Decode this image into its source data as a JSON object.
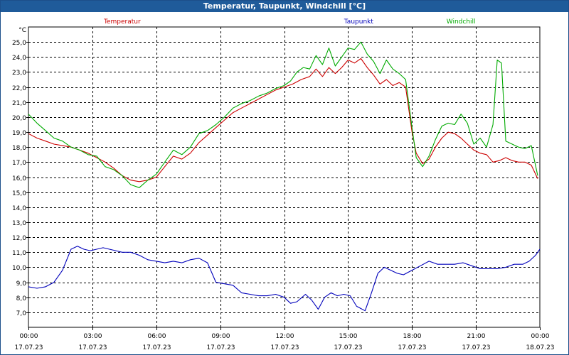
{
  "window": {
    "title": "Temperatur, Taupunkt, Windchill [°C]"
  },
  "chart_data": {
    "type": "line",
    "title": "Temperatur, Taupunkt, Windchill [°C]",
    "y_unit": "°C",
    "ylim": [
      6.0,
      26.0
    ],
    "y_ticks": [
      "7,0",
      "8,0",
      "9,0",
      "10,0",
      "11,0",
      "12,0",
      "13,0",
      "14,0",
      "15,0",
      "16,0",
      "17,0",
      "18,0",
      "19,0",
      "20,0",
      "21,0",
      "22,0",
      "23,0",
      "24,0",
      "25,0"
    ],
    "xlim": [
      0,
      24
    ],
    "x_ticks": [
      {
        "time": "00:00",
        "date": "17.07.23"
      },
      {
        "time": "03:00",
        "date": "17.07.23"
      },
      {
        "time": "06:00",
        "date": "17.07.23"
      },
      {
        "time": "09:00",
        "date": "17.07.23"
      },
      {
        "time": "12:00",
        "date": "17.07.23"
      },
      {
        "time": "15:00",
        "date": "17.07.23"
      },
      {
        "time": "18:00",
        "date": "17.07.23"
      },
      {
        "time": "21:00",
        "date": "17.07.23"
      },
      {
        "time": "00:00",
        "date": "18.07.23"
      }
    ],
    "grid": true,
    "legend_placement": "top",
    "series": [
      {
        "name": "Temperatur",
        "color": "#cc0000",
        "points": [
          [
            0,
            18.9
          ],
          [
            0.4,
            18.6
          ],
          [
            0.8,
            18.4
          ],
          [
            1.2,
            18.2
          ],
          [
            1.6,
            18.1
          ],
          [
            2.0,
            18.0
          ],
          [
            2.4,
            17.8
          ],
          [
            2.8,
            17.6
          ],
          [
            3.2,
            17.3
          ],
          [
            3.6,
            17.0
          ],
          [
            4.0,
            16.6
          ],
          [
            4.4,
            16.1
          ],
          [
            4.8,
            15.8
          ],
          [
            5.2,
            15.7
          ],
          [
            5.6,
            15.8
          ],
          [
            6.0,
            16.0
          ],
          [
            6.4,
            16.7
          ],
          [
            6.8,
            17.4
          ],
          [
            7.2,
            17.2
          ],
          [
            7.6,
            17.6
          ],
          [
            8.0,
            18.3
          ],
          [
            8.4,
            18.8
          ],
          [
            8.8,
            19.3
          ],
          [
            9.2,
            19.8
          ],
          [
            9.6,
            20.3
          ],
          [
            10.0,
            20.6
          ],
          [
            10.4,
            20.9
          ],
          [
            10.8,
            21.2
          ],
          [
            11.2,
            21.5
          ],
          [
            11.6,
            21.8
          ],
          [
            12.0,
            22.0
          ],
          [
            12.4,
            22.2
          ],
          [
            12.8,
            22.5
          ],
          [
            13.2,
            22.7
          ],
          [
            13.5,
            23.2
          ],
          [
            13.8,
            22.7
          ],
          [
            14.1,
            23.3
          ],
          [
            14.4,
            22.9
          ],
          [
            14.7,
            23.3
          ],
          [
            15.0,
            23.8
          ],
          [
            15.3,
            23.6
          ],
          [
            15.6,
            23.9
          ],
          [
            15.9,
            23.3
          ],
          [
            16.2,
            22.8
          ],
          [
            16.5,
            22.2
          ],
          [
            16.8,
            22.5
          ],
          [
            17.1,
            22.1
          ],
          [
            17.4,
            22.3
          ],
          [
            17.7,
            22.0
          ],
          [
            18.0,
            19.0
          ],
          [
            18.2,
            17.6
          ],
          [
            18.5,
            16.9
          ],
          [
            18.8,
            17.2
          ],
          [
            19.1,
            18.0
          ],
          [
            19.4,
            18.6
          ],
          [
            19.7,
            19.0
          ],
          [
            20.0,
            18.9
          ],
          [
            20.3,
            18.6
          ],
          [
            20.6,
            18.2
          ],
          [
            20.9,
            17.8
          ],
          [
            21.2,
            17.6
          ],
          [
            21.5,
            17.5
          ],
          [
            21.8,
            17.0
          ],
          [
            22.1,
            17.1
          ],
          [
            22.4,
            17.3
          ],
          [
            22.7,
            17.1
          ],
          [
            23.0,
            17.0
          ],
          [
            23.3,
            17.0
          ],
          [
            23.6,
            16.8
          ],
          [
            23.9,
            15.9
          ]
        ]
      },
      {
        "name": "Taupunkt",
        "color": "#0000bb",
        "points": [
          [
            0,
            8.7
          ],
          [
            0.4,
            8.6
          ],
          [
            0.8,
            8.7
          ],
          [
            1.2,
            9.0
          ],
          [
            1.6,
            9.8
          ],
          [
            2.0,
            11.2
          ],
          [
            2.3,
            11.4
          ],
          [
            2.6,
            11.2
          ],
          [
            2.9,
            11.1
          ],
          [
            3.2,
            11.2
          ],
          [
            3.5,
            11.3
          ],
          [
            3.8,
            11.2
          ],
          [
            4.1,
            11.1
          ],
          [
            4.4,
            11.0
          ],
          [
            4.8,
            11.0
          ],
          [
            5.2,
            10.8
          ],
          [
            5.6,
            10.5
          ],
          [
            6.0,
            10.4
          ],
          [
            6.4,
            10.3
          ],
          [
            6.8,
            10.4
          ],
          [
            7.2,
            10.3
          ],
          [
            7.6,
            10.5
          ],
          [
            8.0,
            10.6
          ],
          [
            8.4,
            10.3
          ],
          [
            8.8,
            9.0
          ],
          [
            9.2,
            8.9
          ],
          [
            9.6,
            8.8
          ],
          [
            10.0,
            8.3
          ],
          [
            10.4,
            8.2
          ],
          [
            10.8,
            8.1
          ],
          [
            11.2,
            8.1
          ],
          [
            11.6,
            8.2
          ],
          [
            12.0,
            8.0
          ],
          [
            12.3,
            7.6
          ],
          [
            12.6,
            7.7
          ],
          [
            13.0,
            8.2
          ],
          [
            13.3,
            7.8
          ],
          [
            13.6,
            7.2
          ],
          [
            13.9,
            8.0
          ],
          [
            14.2,
            8.3
          ],
          [
            14.5,
            8.1
          ],
          [
            14.8,
            8.2
          ],
          [
            15.1,
            8.1
          ],
          [
            15.4,
            7.4
          ],
          [
            15.8,
            7.1
          ],
          [
            16.1,
            8.3
          ],
          [
            16.4,
            9.6
          ],
          [
            16.7,
            10.0
          ],
          [
            17.0,
            9.8
          ],
          [
            17.3,
            9.6
          ],
          [
            17.6,
            9.5
          ],
          [
            18.0,
            9.8
          ],
          [
            18.4,
            10.1
          ],
          [
            18.8,
            10.4
          ],
          [
            19.2,
            10.2
          ],
          [
            19.6,
            10.2
          ],
          [
            20.0,
            10.2
          ],
          [
            20.4,
            10.3
          ],
          [
            20.8,
            10.1
          ],
          [
            21.2,
            9.9
          ],
          [
            21.6,
            9.9
          ],
          [
            22.0,
            9.9
          ],
          [
            22.4,
            10.0
          ],
          [
            22.8,
            10.2
          ],
          [
            23.2,
            10.2
          ],
          [
            23.5,
            10.4
          ],
          [
            23.8,
            10.8
          ],
          [
            24.0,
            11.2
          ]
        ]
      },
      {
        "name": "Windchill",
        "color": "#00aa00",
        "points": [
          [
            0,
            20.2
          ],
          [
            0.4,
            19.6
          ],
          [
            0.8,
            19.1
          ],
          [
            1.2,
            18.6
          ],
          [
            1.6,
            18.4
          ],
          [
            2.0,
            18.0
          ],
          [
            2.4,
            17.8
          ],
          [
            2.8,
            17.5
          ],
          [
            3.2,
            17.4
          ],
          [
            3.6,
            16.7
          ],
          [
            4.0,
            16.5
          ],
          [
            4.4,
            16.1
          ],
          [
            4.8,
            15.5
          ],
          [
            5.2,
            15.3
          ],
          [
            5.6,
            15.8
          ],
          [
            6.0,
            16.2
          ],
          [
            6.4,
            17.0
          ],
          [
            6.8,
            17.8
          ],
          [
            7.2,
            17.5
          ],
          [
            7.6,
            18.0
          ],
          [
            8.0,
            18.9
          ],
          [
            8.4,
            19.1
          ],
          [
            8.8,
            19.5
          ],
          [
            9.2,
            20.0
          ],
          [
            9.6,
            20.6
          ],
          [
            10.0,
            20.9
          ],
          [
            10.4,
            21.1
          ],
          [
            10.8,
            21.4
          ],
          [
            11.2,
            21.6
          ],
          [
            11.6,
            21.9
          ],
          [
            12.0,
            22.1
          ],
          [
            12.3,
            22.4
          ],
          [
            12.6,
            23.0
          ],
          [
            12.9,
            23.3
          ],
          [
            13.2,
            23.2
          ],
          [
            13.5,
            24.1
          ],
          [
            13.8,
            23.5
          ],
          [
            14.1,
            24.6
          ],
          [
            14.4,
            23.4
          ],
          [
            14.7,
            24.0
          ],
          [
            15.0,
            24.6
          ],
          [
            15.3,
            24.5
          ],
          [
            15.6,
            25.0
          ],
          [
            15.9,
            24.2
          ],
          [
            16.2,
            23.7
          ],
          [
            16.5,
            22.9
          ],
          [
            16.8,
            23.8
          ],
          [
            17.1,
            23.2
          ],
          [
            17.4,
            22.9
          ],
          [
            17.7,
            22.5
          ],
          [
            18.0,
            19.3
          ],
          [
            18.2,
            17.3
          ],
          [
            18.5,
            16.7
          ],
          [
            18.8,
            17.4
          ],
          [
            19.1,
            18.5
          ],
          [
            19.4,
            19.4
          ],
          [
            19.7,
            19.6
          ],
          [
            20.0,
            19.5
          ],
          [
            20.3,
            20.2
          ],
          [
            20.6,
            19.6
          ],
          [
            20.9,
            18.2
          ],
          [
            21.2,
            18.6
          ],
          [
            21.5,
            18.0
          ],
          [
            21.8,
            19.5
          ],
          [
            22.0,
            23.8
          ],
          [
            22.2,
            23.6
          ],
          [
            22.4,
            18.4
          ],
          [
            22.7,
            18.2
          ],
          [
            23.0,
            18.0
          ],
          [
            23.3,
            17.9
          ],
          [
            23.6,
            18.1
          ],
          [
            23.9,
            16.1
          ]
        ]
      }
    ]
  }
}
